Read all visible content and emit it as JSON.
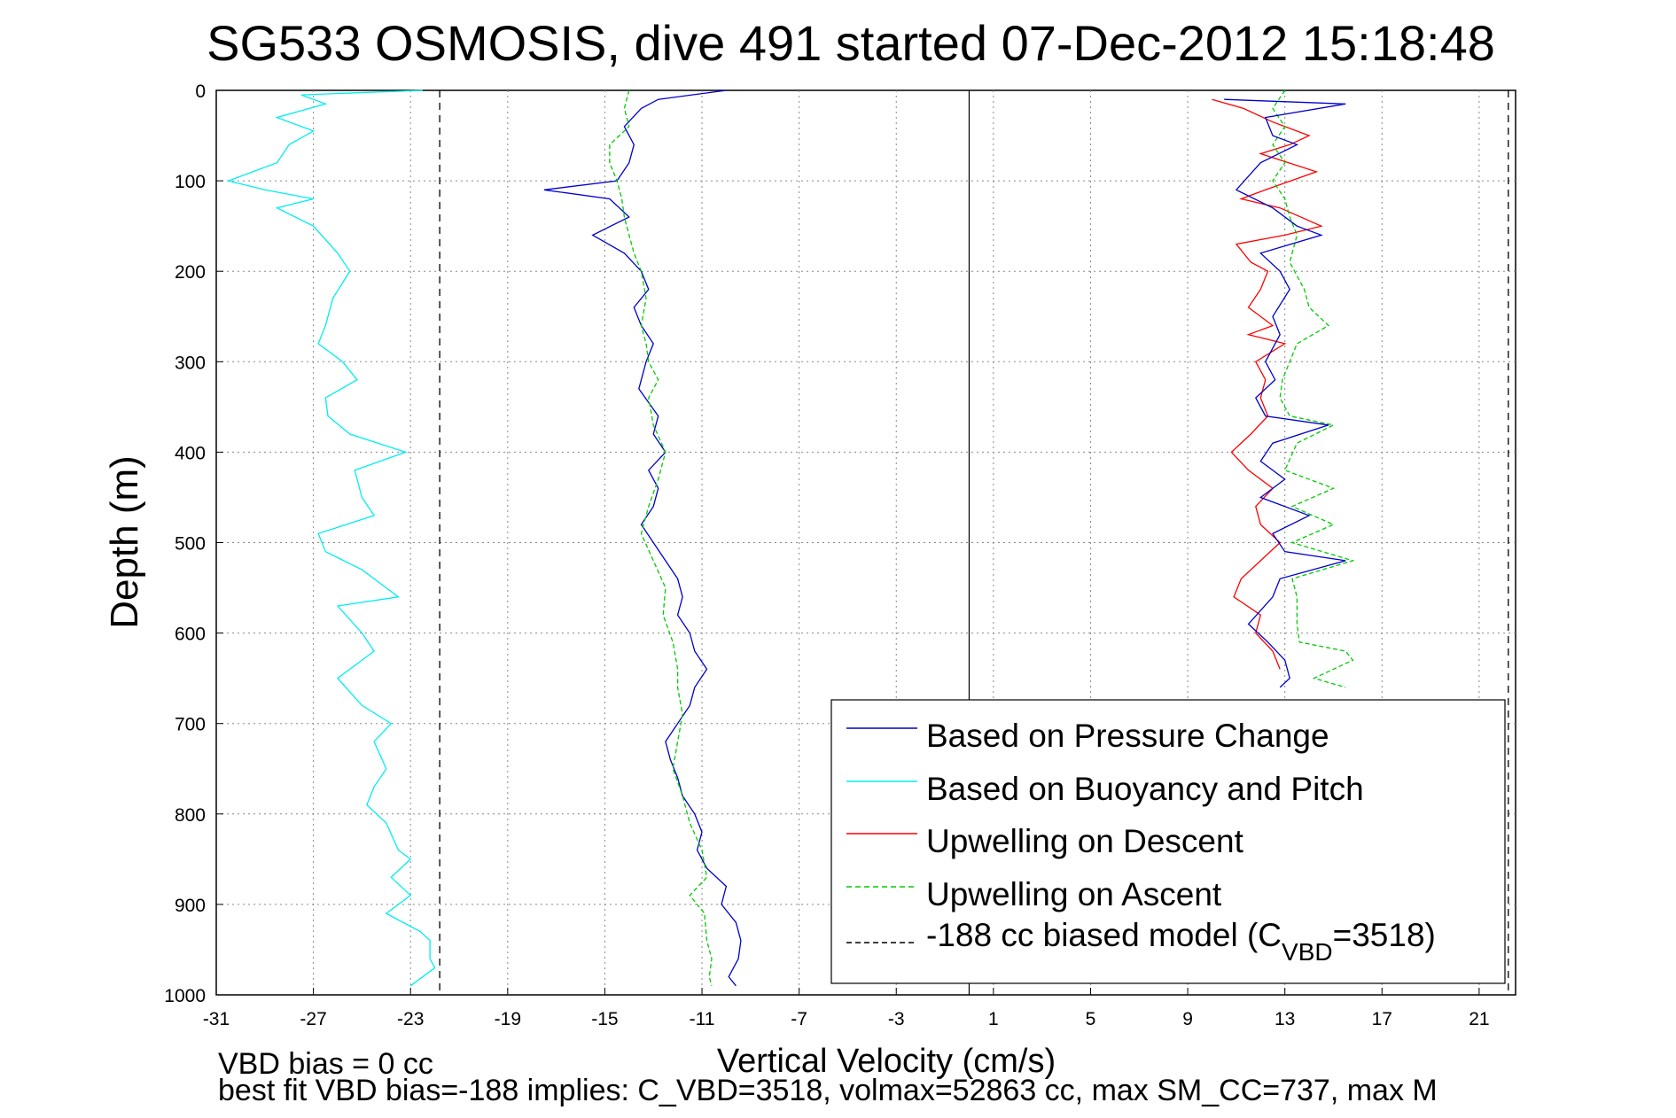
{
  "chart_data": {
    "type": "line",
    "title": "SG533 OSMOSIS, dive 491 started 07-Dec-2012 15:18:48",
    "xlabel": "Vertical Velocity (cm/s)",
    "ylabel": "Depth (m)",
    "xlim": [
      -31,
      22.5
    ],
    "ylim": [
      0,
      1000
    ],
    "y_reversed": true,
    "grid": true,
    "xticks": [
      -31,
      -27,
      -23,
      -19,
      -15,
      -11,
      -7,
      -3,
      1,
      5,
      9,
      13,
      17,
      21
    ],
    "yticks": [
      0,
      100,
      200,
      300,
      400,
      500,
      600,
      700,
      800,
      900,
      1000
    ],
    "legend_position": "bottom-right",
    "legend": [
      {
        "label": "Based on Pressure Change",
        "color": "#0000cc",
        "style": "solid"
      },
      {
        "label": "Based on Buoyancy and Pitch",
        "color": "#00eeee",
        "style": "solid"
      },
      {
        "label": "Upwelling on Descent",
        "color": "#ff0000",
        "style": "solid"
      },
      {
        "label": "Upwelling on Ascent",
        "color": "#00cc00",
        "style": "dashed"
      },
      {
        "label_pre": "-188 cc biased model (C",
        "label_sub": "VBD",
        "label_post": "=3518)",
        "color": "#000000",
        "style": "dashed"
      }
    ],
    "series": [
      {
        "name": "Based on Pressure Change",
        "color": "#0000cc",
        "style": "solid",
        "points": [
          [
            -10,
            0
          ],
          [
            -12.8,
            10
          ],
          [
            -13.5,
            20
          ],
          [
            -14.2,
            40
          ],
          [
            -13.8,
            60
          ],
          [
            -14.0,
            80
          ],
          [
            -14.5,
            100
          ],
          [
            -17.5,
            110
          ],
          [
            -14.8,
            120
          ],
          [
            -14.0,
            140
          ],
          [
            -15.5,
            160
          ],
          [
            -14.2,
            180
          ],
          [
            -13.5,
            200
          ],
          [
            -13.2,
            220
          ],
          [
            -13.8,
            240
          ],
          [
            -13.5,
            260
          ],
          [
            -13.0,
            280
          ],
          [
            -13.3,
            300
          ],
          [
            -13.6,
            330
          ],
          [
            -12.8,
            360
          ],
          [
            -13.0,
            380
          ],
          [
            -12.5,
            400
          ],
          [
            -13.2,
            420
          ],
          [
            -12.8,
            440
          ],
          [
            -13.0,
            460
          ],
          [
            -13.5,
            480
          ],
          [
            -13.0,
            500
          ],
          [
            -12.5,
            520
          ],
          [
            -12.0,
            540
          ],
          [
            -11.8,
            560
          ],
          [
            -12.0,
            580
          ],
          [
            -11.5,
            600
          ],
          [
            -11.3,
            620
          ],
          [
            -10.8,
            640
          ],
          [
            -11.3,
            660
          ],
          [
            -11.5,
            680
          ],
          [
            -12.0,
            700
          ],
          [
            -12.5,
            720
          ],
          [
            -12.3,
            740
          ],
          [
            -12.0,
            760
          ],
          [
            -11.8,
            780
          ],
          [
            -11.3,
            800
          ],
          [
            -11.0,
            820
          ],
          [
            -11.2,
            840
          ],
          [
            -10.8,
            860
          ],
          [
            -10.0,
            880
          ],
          [
            -10.2,
            900
          ],
          [
            -9.6,
            920
          ],
          [
            -9.4,
            940
          ],
          [
            -9.5,
            960
          ],
          [
            -9.9,
            980
          ],
          [
            -9.6,
            990
          ]
        ]
      },
      {
        "name": "Based on Buoyancy and Pitch",
        "color": "#00eeee",
        "style": "solid",
        "points": [
          [
            -22.5,
            0
          ],
          [
            -27.5,
            5
          ],
          [
            -26.5,
            15
          ],
          [
            -28.5,
            30
          ],
          [
            -27.0,
            45
          ],
          [
            -28.0,
            60
          ],
          [
            -28.5,
            80
          ],
          [
            -30.5,
            100
          ],
          [
            -29.0,
            110
          ],
          [
            -27.0,
            120
          ],
          [
            -28.5,
            130
          ],
          [
            -27.0,
            150
          ],
          [
            -26.0,
            180
          ],
          [
            -25.5,
            200
          ],
          [
            -26.2,
            230
          ],
          [
            -26.5,
            260
          ],
          [
            -26.8,
            280
          ],
          [
            -25.8,
            300
          ],
          [
            -25.2,
            320
          ],
          [
            -26.5,
            340
          ],
          [
            -26.4,
            360
          ],
          [
            -25.5,
            380
          ],
          [
            -23.2,
            400
          ],
          [
            -25.3,
            420
          ],
          [
            -25.0,
            450
          ],
          [
            -24.5,
            470
          ],
          [
            -26.8,
            490
          ],
          [
            -26.5,
            510
          ],
          [
            -25.0,
            530
          ],
          [
            -24.0,
            550
          ],
          [
            -23.5,
            560
          ],
          [
            -26.0,
            570
          ],
          [
            -25.0,
            600
          ],
          [
            -24.5,
            620
          ],
          [
            -26.0,
            650
          ],
          [
            -25.0,
            680
          ],
          [
            -23.8,
            700
          ],
          [
            -24.5,
            720
          ],
          [
            -24.0,
            750
          ],
          [
            -24.5,
            770
          ],
          [
            -24.8,
            790
          ],
          [
            -24.0,
            810
          ],
          [
            -23.5,
            840
          ],
          [
            -23.0,
            850
          ],
          [
            -23.8,
            870
          ],
          [
            -23.0,
            890
          ],
          [
            -24.0,
            910
          ],
          [
            -22.6,
            930
          ],
          [
            -22.2,
            940
          ],
          [
            -22.2,
            960
          ],
          [
            -22.0,
            970
          ],
          [
            -23.0,
            990
          ]
        ]
      },
      {
        "name": "Upwelling on Descent",
        "color": "#ff0000",
        "style": "solid",
        "points": [
          [
            10.0,
            10
          ],
          [
            11.3,
            20
          ],
          [
            12.5,
            35
          ],
          [
            14.0,
            50
          ],
          [
            13.2,
            60
          ],
          [
            12.0,
            70
          ],
          [
            14.3,
            90
          ],
          [
            12.2,
            110
          ],
          [
            11.2,
            120
          ],
          [
            12.8,
            130
          ],
          [
            14.5,
            150
          ],
          [
            13.0,
            160
          ],
          [
            11.0,
            170
          ],
          [
            11.6,
            190
          ],
          [
            12.3,
            200
          ],
          [
            12.0,
            220
          ],
          [
            11.5,
            240
          ],
          [
            12.5,
            260
          ],
          [
            11.5,
            270
          ],
          [
            13.0,
            280
          ],
          [
            11.8,
            300
          ],
          [
            12.2,
            320
          ],
          [
            12.0,
            340
          ],
          [
            12.3,
            360
          ],
          [
            11.6,
            380
          ],
          [
            10.8,
            400
          ],
          [
            11.5,
            420
          ],
          [
            12.5,
            440
          ],
          [
            11.8,
            460
          ],
          [
            12.0,
            480
          ],
          [
            12.8,
            500
          ],
          [
            12.0,
            520
          ],
          [
            11.2,
            540
          ],
          [
            10.9,
            560
          ],
          [
            12.0,
            580
          ],
          [
            11.8,
            600
          ],
          [
            12.5,
            620
          ],
          [
            12.8,
            640
          ]
        ]
      },
      {
        "name": "Upwelling on Ascent",
        "color": "#00cc00",
        "style": "dashed",
        "points": [
          [
            -14.0,
            0
          ],
          [
            -14.2,
            20
          ],
          [
            -14.0,
            40
          ],
          [
            -14.8,
            60
          ],
          [
            -14.8,
            80
          ],
          [
            -14.5,
            100
          ],
          [
            -14.3,
            120
          ],
          [
            -14.2,
            140
          ],
          [
            -14.0,
            160
          ],
          [
            -13.8,
            180
          ],
          [
            -13.5,
            200
          ],
          [
            -13.3,
            230
          ],
          [
            -13.5,
            260
          ],
          [
            -13.3,
            280
          ],
          [
            -13.2,
            300
          ],
          [
            -12.8,
            320
          ],
          [
            -13.2,
            340
          ],
          [
            -13.0,
            370
          ],
          [
            -12.5,
            400
          ],
          [
            -12.8,
            430
          ],
          [
            -13.2,
            460
          ],
          [
            -13.5,
            490
          ],
          [
            -13.0,
            520
          ],
          [
            -12.5,
            550
          ],
          [
            -12.6,
            580
          ],
          [
            -12.2,
            610
          ],
          [
            -12.0,
            640
          ],
          [
            -12.0,
            660
          ],
          [
            -11.8,
            690
          ],
          [
            -12.0,
            720
          ],
          [
            -12.2,
            750
          ],
          [
            -11.8,
            780
          ],
          [
            -11.5,
            810
          ],
          [
            -11.0,
            840
          ],
          [
            -10.8,
            870
          ],
          [
            -11.5,
            890
          ],
          [
            -10.9,
            910
          ],
          [
            -10.8,
            940
          ],
          [
            -10.6,
            960
          ],
          [
            -10.7,
            980
          ],
          [
            -10.6,
            990
          ]
        ]
      },
      {
        "name": "Upwelling on Ascent (positive branch)",
        "color": "#00cc00",
        "style": "dashed",
        "is_legend_entry": false,
        "points": [
          [
            13.0,
            0
          ],
          [
            12.5,
            20
          ],
          [
            13.0,
            40
          ],
          [
            12.5,
            60
          ],
          [
            13.0,
            80
          ],
          [
            12.5,
            100
          ],
          [
            13.0,
            120
          ],
          [
            13.2,
            140
          ],
          [
            13.5,
            160
          ],
          [
            13.2,
            190
          ],
          [
            13.8,
            220
          ],
          [
            14.0,
            240
          ],
          [
            14.8,
            260
          ],
          [
            13.5,
            280
          ],
          [
            13.2,
            300
          ],
          [
            12.9,
            320
          ],
          [
            12.8,
            340
          ],
          [
            13.2,
            360
          ],
          [
            15.0,
            370
          ],
          [
            13.5,
            390
          ],
          [
            13.0,
            420
          ],
          [
            15.0,
            440
          ],
          [
            13.3,
            460
          ],
          [
            15.0,
            480
          ],
          [
            13.3,
            500
          ],
          [
            15.8,
            520
          ],
          [
            13.3,
            540
          ],
          [
            13.5,
            560
          ],
          [
            13.5,
            590
          ],
          [
            13.6,
            610
          ],
          [
            15.5,
            620
          ],
          [
            15.8,
            630
          ],
          [
            14.2,
            650
          ],
          [
            15.5,
            660
          ]
        ]
      },
      {
        "name": "Based on Pressure Change (positive branch)",
        "color": "#0000cc",
        "style": "solid",
        "is_legend_entry": false,
        "points": [
          [
            10.5,
            10
          ],
          [
            15.5,
            15
          ],
          [
            12.2,
            30
          ],
          [
            12.5,
            50
          ],
          [
            13.5,
            60
          ],
          [
            12.0,
            80
          ],
          [
            11.0,
            110
          ],
          [
            12.5,
            130
          ],
          [
            13.5,
            150
          ],
          [
            14.5,
            160
          ],
          [
            12.0,
            180
          ],
          [
            12.8,
            200
          ],
          [
            13.2,
            220
          ],
          [
            12.5,
            250
          ],
          [
            12.8,
            270
          ],
          [
            12.2,
            300
          ],
          [
            12.6,
            320
          ],
          [
            11.8,
            340
          ],
          [
            12.2,
            360
          ],
          [
            14.8,
            370
          ],
          [
            12.5,
            390
          ],
          [
            12.0,
            410
          ],
          [
            13.0,
            430
          ],
          [
            12.0,
            450
          ],
          [
            14.0,
            470
          ],
          [
            12.5,
            490
          ],
          [
            13.0,
            510
          ],
          [
            15.5,
            520
          ],
          [
            12.8,
            540
          ],
          [
            12.5,
            560
          ],
          [
            11.5,
            590
          ],
          [
            12.3,
            610
          ],
          [
            13.0,
            630
          ],
          [
            13.2,
            650
          ],
          [
            12.8,
            660
          ]
        ]
      },
      {
        "name": "-188 cc biased model",
        "color": "#000000",
        "style": "dashed",
        "points": [
          [
            -21.8,
            0
          ],
          [
            -21.8,
            1000
          ]
        ]
      },
      {
        "name": "-188 cc biased model (positive branch)",
        "color": "#000000",
        "style": "dashed",
        "is_legend_entry": false,
        "points": [
          [
            22.2,
            0
          ],
          [
            22.2,
            1000
          ]
        ]
      }
    ],
    "zero_line_x": 0,
    "notes": [
      "VBD bias = 0 cc",
      "best fit VBD bias=-188 implies: C_VBD=3518, volmax=52863 cc, max SM_CC=737, max M"
    ]
  }
}
